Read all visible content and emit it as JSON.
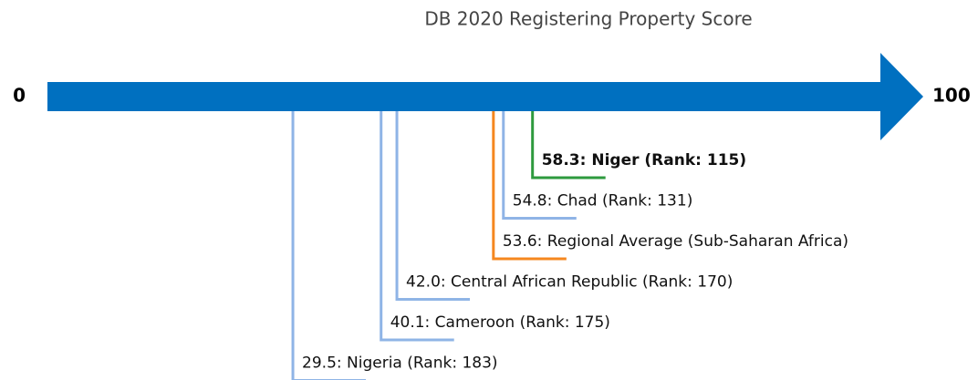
{
  "chart_data": {
    "type": "number-line",
    "title": "DB 2020 Registering Property Score",
    "xlim": [
      0,
      100
    ],
    "xticks": [
      0,
      100
    ],
    "axis_color": "#0070c0",
    "points": [
      {
        "value": 58.3,
        "label": "58.3: Niger (Rank: 115)",
        "color": "#2e9a3e",
        "bold": true
      },
      {
        "value": 54.8,
        "label": "54.8: Chad (Rank: 131)",
        "color": "#8fb4e6",
        "bold": false
      },
      {
        "value": 53.6,
        "label": "53.6: Regional Average (Sub-Saharan Africa)",
        "color": "#f5871f",
        "bold": false
      },
      {
        "value": 42.0,
        "label": "42.0: Central African Republic (Rank: 170)",
        "color": "#8fb4e6",
        "bold": false
      },
      {
        "value": 40.1,
        "label": "40.1: Cameroon (Rank: 175)",
        "color": "#8fb4e6",
        "bold": false
      },
      {
        "value": 29.5,
        "label": "29.5: Nigeria (Rank: 183)",
        "color": "#8fb4e6",
        "bold": false
      }
    ]
  }
}
